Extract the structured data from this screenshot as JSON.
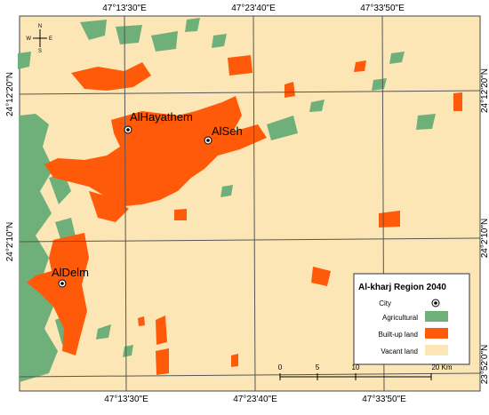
{
  "coordinates": {
    "top": [
      "47°13'30\"E",
      "47°23'40\"E",
      "47°33'50\"E"
    ],
    "bottom": [
      "47°13'30\"E",
      "47°23'40\"E",
      "47°33'50\"E"
    ],
    "left": [
      "24°12'20\"N",
      "24°2'10\"N"
    ],
    "right": [
      "24°12'20\"N",
      "24°2'10\"N",
      "23°52'0\"N"
    ]
  },
  "north_arrow": {
    "n": "N",
    "s": "S",
    "w": "W",
    "e": "E"
  },
  "cities": [
    "AlHayathem",
    "AlSeh",
    "AlDelm"
  ],
  "legend": {
    "title": "Al-kharj Region 2040",
    "items": [
      "City",
      "Agricultural",
      "Built-up land",
      "Vacant land"
    ]
  },
  "scale_bar": [
    "0",
    "5",
    "10",
    "20 Km"
  ]
}
